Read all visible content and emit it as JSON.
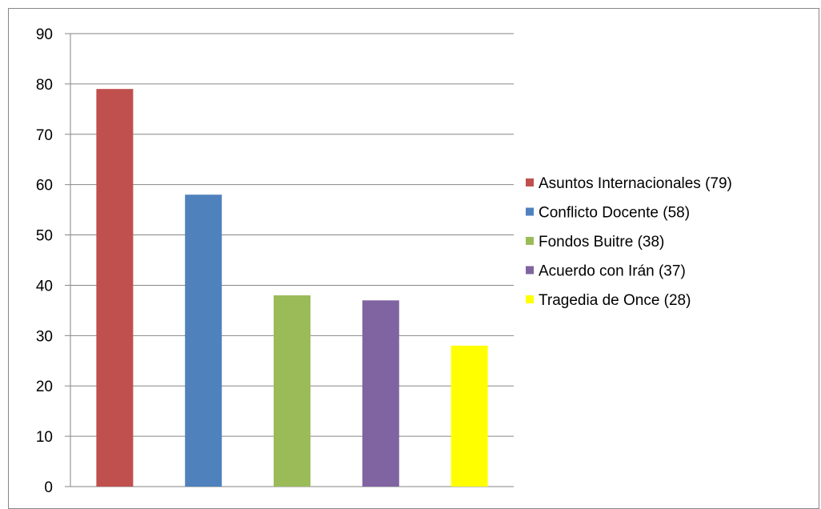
{
  "chart_data": {
    "type": "bar",
    "title": "",
    "xlabel": "",
    "ylabel": "",
    "ylim": [
      0,
      90
    ],
    "ytick_step": 10,
    "yticks": [
      "0",
      "10",
      "20",
      "30",
      "40",
      "50",
      "60",
      "70",
      "80",
      "90"
    ],
    "grid": true,
    "legend_position": "right",
    "categories": [
      "Asuntos Internacionales (79)",
      "Conflicto Docente (58)",
      "Fondos Buitre (38)",
      "Acuerdo con Irán (37)",
      "Tragedia de Once (28)"
    ],
    "values": [
      79,
      58,
      38,
      37,
      28
    ],
    "colors": [
      "#C0504D",
      "#4F81BD",
      "#9BBB59",
      "#8064A2",
      "#FFFF00"
    ]
  }
}
